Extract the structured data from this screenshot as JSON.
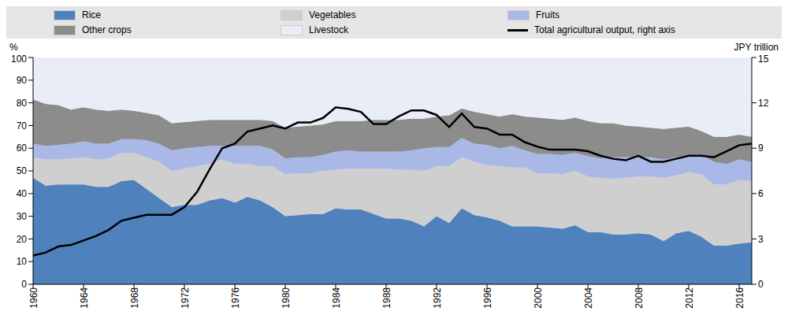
{
  "chart_data": {
    "type": "area",
    "stacked": true,
    "legend": "top",
    "grid": false,
    "y_label": "%",
    "y2_label": "JPY trillion",
    "x": [
      1960,
      1961,
      1962,
      1963,
      1964,
      1965,
      1966,
      1967,
      1968,
      1969,
      1970,
      1971,
      1972,
      1973,
      1974,
      1975,
      1976,
      1977,
      1978,
      1979,
      1980,
      1981,
      1982,
      1983,
      1984,
      1985,
      1986,
      1987,
      1988,
      1989,
      1990,
      1991,
      1992,
      1993,
      1994,
      1995,
      1996,
      1997,
      1998,
      1999,
      2000,
      2001,
      2002,
      2003,
      2004,
      2005,
      2006,
      2007,
      2008,
      2009,
      2010,
      2011,
      2012,
      2013,
      2014,
      2015,
      2016,
      2017
    ],
    "xlim": [
      1960,
      2017
    ],
    "xticks": [
      1960,
      1964,
      1968,
      1972,
      1976,
      1980,
      1984,
      1988,
      1992,
      1996,
      2000,
      2004,
      2008,
      2012,
      2016
    ],
    "ylim": [
      0,
      100
    ],
    "yticks": [
      0,
      10,
      20,
      30,
      40,
      50,
      60,
      70,
      80,
      90,
      100
    ],
    "y2lim": [
      0,
      15
    ],
    "y2ticks": [
      0,
      3,
      6,
      9,
      12,
      15
    ],
    "series": [
      {
        "name": "Rice",
        "type": "area",
        "color": "#4f81bd",
        "values": [
          47,
          43.5,
          44,
          44,
          44,
          43,
          43,
          45.5,
          46,
          42,
          38,
          34,
          35,
          35,
          37,
          38,
          36,
          38.5,
          37,
          34,
          30,
          30.5,
          31,
          31,
          33.5,
          33,
          33,
          31,
          29,
          29,
          28,
          25.5,
          30,
          27,
          33.5,
          30.5,
          29.5,
          28,
          25.5,
          25.5,
          25.5,
          25,
          24.5,
          26,
          23,
          23,
          22,
          22,
          22.5,
          22,
          19,
          22.5,
          23.5,
          21,
          17,
          17,
          18,
          18.5
        ]
      },
      {
        "name": "Vegetables",
        "type": "area",
        "color": "#cfcfcf",
        "values": [
          9,
          11.5,
          11,
          11.5,
          12,
          12,
          12.5,
          12.5,
          12,
          14,
          16,
          16,
          16,
          17,
          16,
          17,
          17,
          14.5,
          15,
          18,
          18.5,
          18.5,
          18,
          19,
          17,
          18,
          18,
          20,
          22,
          21.5,
          22.5,
          24.5,
          22,
          25,
          22.5,
          23.5,
          23,
          24,
          26,
          26,
          23.5,
          24,
          24,
          24,
          24.5,
          24,
          24.5,
          25,
          25,
          25.5,
          28,
          25.5,
          26,
          27.5,
          27,
          27,
          28,
          27
        ]
      },
      {
        "name": "Fruits",
        "type": "area",
        "color": "#a9b8e6",
        "values": [
          6,
          6,
          6.5,
          6.5,
          7,
          7,
          6.5,
          6,
          6,
          7.5,
          8,
          9,
          9,
          8.5,
          8,
          6,
          8,
          8,
          9,
          7.5,
          7,
          7,
          7,
          7,
          8,
          8,
          7.5,
          7.5,
          7.5,
          8,
          8.5,
          10,
          8.5,
          8.5,
          8.5,
          8,
          9,
          8,
          9.5,
          7.5,
          8.5,
          8.5,
          8.5,
          8,
          9,
          8.5,
          9.5,
          9,
          8.5,
          8.5,
          8,
          8,
          7.5,
          8.5,
          10,
          9,
          9,
          8.5
        ]
      },
      {
        "name": "Other crops",
        "type": "area",
        "color": "#8c8c8c",
        "values": [
          19.5,
          18.5,
          17.5,
          15,
          15,
          15,
          14.5,
          13,
          12.5,
          12,
          12.5,
          12,
          11.5,
          11.5,
          11.5,
          11.5,
          11.5,
          11.5,
          11.5,
          12.5,
          13.5,
          13.5,
          14,
          13.5,
          13.5,
          13,
          13.5,
          14,
          14,
          14,
          14,
          13,
          13.5,
          14,
          13,
          14,
          13.5,
          14,
          14,
          15,
          16,
          15.5,
          15.5,
          15.5,
          15.5,
          15.5,
          15,
          14,
          13.5,
          13,
          13.5,
          13,
          12.5,
          10.5,
          11,
          12,
          11,
          11
        ]
      },
      {
        "name": "Livestock",
        "type": "area",
        "color": "#e9edf6",
        "values": [
          18.5,
          20.5,
          21,
          23,
          22,
          23,
          23.5,
          23,
          23.5,
          24.5,
          25.5,
          29,
          28.5,
          28,
          27.5,
          27.5,
          27.5,
          27.5,
          27.5,
          28,
          31,
          30.5,
          30,
          29.5,
          28,
          28,
          28,
          27.5,
          27.5,
          27.5,
          27,
          27,
          26,
          25.5,
          22.5,
          24,
          25,
          26,
          25,
          26,
          26.5,
          27,
          27.5,
          26.5,
          28,
          29,
          29,
          30,
          30.5,
          31,
          31.5,
          31,
          30.5,
          32.5,
          35,
          35,
          34,
          35
        ]
      },
      {
        "name": "Total agricultural output, right axis",
        "type": "line",
        "axis": "y2",
        "color": "#000000",
        "values": [
          1.9,
          2.1,
          2.5,
          2.6,
          2.9,
          3.2,
          3.6,
          4.2,
          4.4,
          4.6,
          4.6,
          4.6,
          5.1,
          6.1,
          7.6,
          9.0,
          9.3,
          10.1,
          10.3,
          10.5,
          10.3,
          10.7,
          10.7,
          11.0,
          11.7,
          11.6,
          11.4,
          10.6,
          10.6,
          11.1,
          11.5,
          11.5,
          11.2,
          10.4,
          11.3,
          10.4,
          10.3,
          9.9,
          9.9,
          9.4,
          9.1,
          8.9,
          8.9,
          8.9,
          8.8,
          8.5,
          8.3,
          8.2,
          8.5,
          8.1,
          8.1,
          8.3,
          8.5,
          8.5,
          8.4,
          8.8,
          9.2,
          9.3
        ]
      }
    ]
  }
}
